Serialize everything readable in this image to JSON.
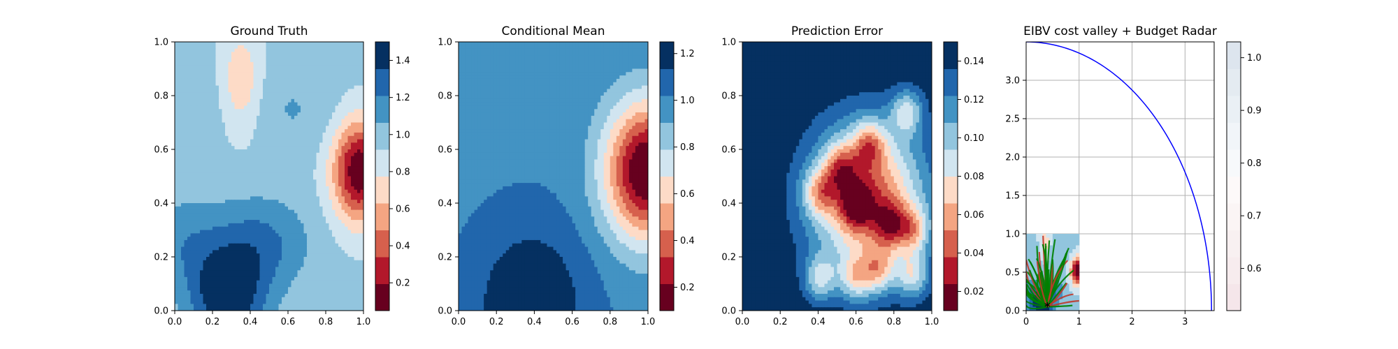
{
  "chart_data": [
    {
      "type": "heatmap",
      "title": "Ground Truth",
      "xlim": [
        0,
        1
      ],
      "ylim": [
        0,
        1
      ],
      "xticks": [
        "0.0",
        "0.2",
        "0.4",
        "0.6",
        "0.8",
        "1.0"
      ],
      "yticks": [
        "0.0",
        "0.2",
        "0.4",
        "0.6",
        "0.8",
        "1.0"
      ],
      "colormap": "RdBu",
      "colorbar": {
        "range": [
          0.05,
          1.5
        ],
        "levels": 10,
        "ticks": [
          "0.2",
          "0.4",
          "0.6",
          "0.8",
          "1.0",
          "1.2",
          "1.4"
        ]
      },
      "field": {
        "base": 0.95,
        "bumps": [
          {
            "x": 0.28,
            "y": 0.05,
            "sx": 0.14,
            "sy": 0.12,
            "a": 0.55
          },
          {
            "x": 0.45,
            "y": 0.25,
            "sx": 0.18,
            "sy": 0.12,
            "a": 0.3
          },
          {
            "x": 0.05,
            "y": 0.25,
            "sx": 0.15,
            "sy": 0.12,
            "a": 0.2
          },
          {
            "x": 0.98,
            "y": 0.52,
            "sx": 0.1,
            "sy": 0.13,
            "a": -0.9
          },
          {
            "x": 0.35,
            "y": 0.85,
            "sx": 0.08,
            "sy": 0.14,
            "a": -0.3
          },
          {
            "x": 0.62,
            "y": 0.75,
            "sx": 0.18,
            "sy": 0.12,
            "a": 0.12
          },
          {
            "x": 0.1,
            "y": 0.75,
            "sx": 0.12,
            "sy": 0.15,
            "a": 0.1
          }
        ]
      }
    },
    {
      "type": "heatmap",
      "title": "Conditional Mean",
      "xlim": [
        0,
        1
      ],
      "ylim": [
        0,
        1
      ],
      "xticks": [
        "0.0",
        "0.2",
        "0.4",
        "0.6",
        "0.8",
        "1.0"
      ],
      "yticks": [
        "0.0",
        "0.2",
        "0.4",
        "0.6",
        "0.8",
        "1.0"
      ],
      "colormap": "RdBu",
      "colorbar": {
        "range": [
          0.1,
          1.25
        ],
        "levels": 10,
        "ticks": [
          "0.2",
          "0.4",
          "0.6",
          "0.8",
          "1.0",
          "1.2"
        ]
      },
      "field": {
        "base": 1.0,
        "bumps": [
          {
            "x": 0.38,
            "y": 0.02,
            "sx": 0.2,
            "sy": 0.2,
            "a": 0.28
          },
          {
            "x": 1.0,
            "y": 0.52,
            "sx": 0.16,
            "sy": 0.18,
            "a": -0.95
          }
        ]
      }
    },
    {
      "type": "heatmap",
      "title": "Prediction Error",
      "xlim": [
        0,
        1
      ],
      "ylim": [
        0,
        1
      ],
      "xticks": [
        "0.0",
        "0.2",
        "0.4",
        "0.6",
        "0.8",
        "1.0"
      ],
      "yticks": [
        "0.0",
        "0.2",
        "0.4",
        "0.6",
        "0.8",
        "1.0"
      ],
      "colormap": "RdBu",
      "colorbar": {
        "range": [
          0.01,
          0.15
        ],
        "levels": 10,
        "ticks": [
          "0.02",
          "0.04",
          "0.06",
          "0.08",
          "0.10",
          "0.12",
          "0.14"
        ]
      },
      "field": {
        "base": 0.15,
        "bumps": [
          {
            "x": 0.66,
            "y": 0.42,
            "sx": 0.21,
            "sy": 0.19,
            "a": -0.11
          },
          {
            "x": 0.41,
            "y": 0.12,
            "sx": 0.06,
            "sy": 0.06,
            "a": -0.05
          },
          {
            "x": 0.41,
            "y": 0.44,
            "sx": 0.06,
            "sy": 0.06,
            "a": -0.05
          },
          {
            "x": 0.52,
            "y": 0.53,
            "sx": 0.06,
            "sy": 0.06,
            "a": -0.05
          },
          {
            "x": 0.6,
            "y": 0.39,
            "sx": 0.06,
            "sy": 0.06,
            "a": -0.05
          },
          {
            "x": 0.67,
            "y": 0.62,
            "sx": 0.06,
            "sy": 0.06,
            "a": -0.05
          },
          {
            "x": 0.78,
            "y": 0.32,
            "sx": 0.06,
            "sy": 0.06,
            "a": -0.05
          },
          {
            "x": 0.87,
            "y": 0.74,
            "sx": 0.06,
            "sy": 0.06,
            "a": -0.05
          },
          {
            "x": 0.9,
            "y": 0.3,
            "sx": 0.06,
            "sy": 0.06,
            "a": -0.05
          },
          {
            "x": 0.9,
            "y": 0.13,
            "sx": 0.06,
            "sy": 0.06,
            "a": -0.05
          },
          {
            "x": 0.6,
            "y": 0.12,
            "sx": 0.06,
            "sy": 0.06,
            "a": -0.05
          },
          {
            "x": 0.72,
            "y": 0.15,
            "sx": 0.06,
            "sy": 0.06,
            "a": -0.05
          }
        ]
      }
    },
    {
      "type": "line",
      "title": "EIBV cost valley + Budget Radar",
      "xlim": [
        0,
        3.55
      ],
      "ylim": [
        0,
        3.5
      ],
      "xticks": [
        "0",
        "1",
        "2",
        "3"
      ],
      "yticks": [
        "0.0",
        "0.5",
        "1.0",
        "1.5",
        "2.0",
        "2.5",
        "3.0"
      ],
      "grid": true,
      "series": [
        {
          "style": "quarter-circle",
          "color": "#0000ff",
          "radius": 3.5,
          "center": [
            0,
            0
          ]
        }
      ],
      "inset_field": {
        "xlim": [
          0,
          1
        ],
        "ylim": [
          0,
          1
        ],
        "origin": [
          0.4,
          0.05
        ]
      },
      "path_colors": [
        "#008000",
        "#c0392b"
      ],
      "colorbar": {
        "range": [
          0.52,
          1.03
        ],
        "levels": 10,
        "ticks": [
          "0.6",
          "0.7",
          "0.8",
          "0.9",
          "1.0"
        ]
      }
    }
  ]
}
